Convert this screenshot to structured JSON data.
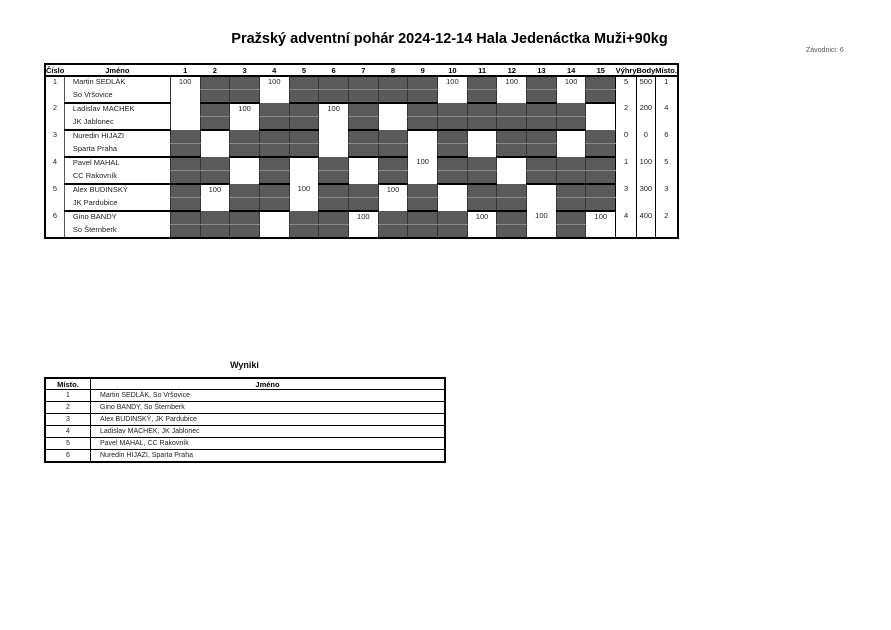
{
  "title": "Pražský adventní pohár  2024-12-14  Hala Jedenáctka   Muži+90kg",
  "count": "Závodnici: 6",
  "main": {
    "headers": [
      "Číslo",
      "Jméno",
      "1",
      "2",
      "3",
      "4",
      "5",
      "6",
      "7",
      "8",
      "9",
      "10",
      "11",
      "12",
      "13",
      "14",
      "15",
      "Výhry",
      "Body",
      "Místo."
    ],
    "rows": [
      {
        "no": "1",
        "name": "Martin SEDLÁK",
        "club": "So Vršovice",
        "rounds": [
          "100",
          null,
          null,
          "100",
          null,
          null,
          null,
          null,
          null,
          "100",
          null,
          "100",
          null,
          "100",
          null
        ],
        "wins": "5",
        "points": "500",
        "place": "1"
      },
      {
        "no": "2",
        "name": "Ladislav MACHEK",
        "club": "JK Jablonec",
        "rounds": [
          "",
          null,
          "100",
          null,
          null,
          "100",
          null,
          "",
          null,
          null,
          null,
          null,
          null,
          null,
          ""
        ],
        "wins": "2",
        "points": "200",
        "place": "4"
      },
      {
        "no": "3",
        "name": "Nuredin HIJAZI",
        "club": "Sparta Praha",
        "rounds": [
          null,
          "",
          null,
          null,
          null,
          "",
          null,
          null,
          "",
          null,
          "",
          null,
          null,
          "",
          null
        ],
        "wins": "0",
        "points": "0",
        "place": "6"
      },
      {
        "no": "4",
        "name": "Pavel MAHAL",
        "club": "CC Rakovník",
        "rounds": [
          null,
          null,
          "",
          null,
          "",
          null,
          "",
          null,
          "100",
          null,
          null,
          "",
          null,
          null,
          null
        ],
        "wins": "1",
        "points": "100",
        "place": "5"
      },
      {
        "no": "5",
        "name": "Alex BUDINSKÝ",
        "club": "JK Pardubice",
        "rounds": [
          null,
          "100",
          null,
          null,
          "100",
          null,
          null,
          "100",
          null,
          "",
          null,
          null,
          "",
          null,
          null
        ],
        "wins": "3",
        "points": "300",
        "place": "3"
      },
      {
        "no": "6",
        "name": "Gino BANDY",
        "club": "So Šternberk",
        "rounds": [
          null,
          null,
          null,
          "",
          null,
          null,
          "100",
          null,
          null,
          null,
          "100",
          null,
          "100",
          null,
          "100"
        ],
        "wins": "4",
        "points": "400",
        "place": "2"
      }
    ]
  },
  "results": {
    "title": "Wyniki",
    "headers": [
      "Místo.",
      "Jméno"
    ],
    "rows": [
      {
        "place": "1",
        "name": "Martin SEDLÁK, So Vršovice"
      },
      {
        "place": "2",
        "name": "Gino BANDY, So Šternberk"
      },
      {
        "place": "3",
        "name": "Alex BUDINSKÝ, JK Pardubice"
      },
      {
        "place": "4",
        "name": "Ladislav MACHEK, JK Jablonec"
      },
      {
        "place": "5",
        "name": "Pavel MAHAL, CC Rakovník"
      },
      {
        "place": "6",
        "name": "Nuredin HIJAZI, Sparta Praha"
      }
    ]
  },
  "colors": {
    "dark_cell": "#5a5a5a"
  }
}
